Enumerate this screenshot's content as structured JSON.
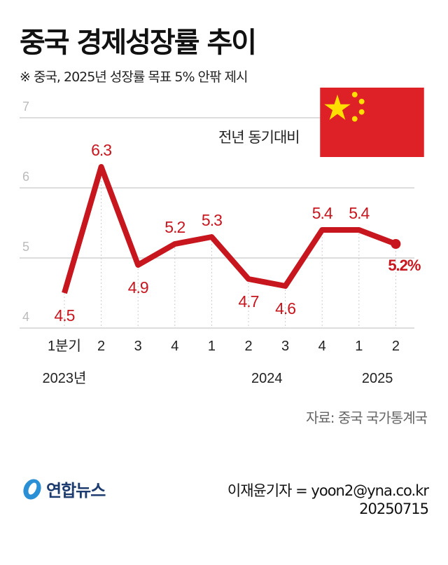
{
  "header": {
    "title": "중국 경제성장률 추이",
    "subtitle": "※ 중국, 2025년 성장률 목표 5% 안팎 제시"
  },
  "chart_data": {
    "type": "line",
    "unit_label": "전년 동기대비",
    "categories": [
      "1분기",
      "2",
      "3",
      "4",
      "1",
      "2",
      "3",
      "4",
      "1",
      "2"
    ],
    "year_labels": [
      {
        "label": "2023년",
        "index": 0
      },
      {
        "label": "2024",
        "index": 5.5
      },
      {
        "label": "2025",
        "index": 8.5
      }
    ],
    "series": [
      {
        "values": [
          4.5,
          6.3,
          4.9,
          5.2,
          5.3,
          4.7,
          4.6,
          5.4,
          5.4,
          5.2
        ]
      }
    ],
    "data_labels": [
      "4.5",
      "6.3",
      "4.9",
      "5.2",
      "5.3",
      "4.7",
      "4.6",
      "5.4",
      "5.4",
      "5.2%"
    ],
    "ylim": [
      4,
      7
    ],
    "yticks": [
      "4",
      "5",
      "6",
      "7"
    ],
    "grid": true,
    "line_color": "#c8161e"
  },
  "footer": {
    "source": "자료: 중국 국가통계국",
    "logo_text": "연합뉴스",
    "reporter": "이재윤기자 = yoon2@yna.co.kr",
    "date": "20250715"
  }
}
